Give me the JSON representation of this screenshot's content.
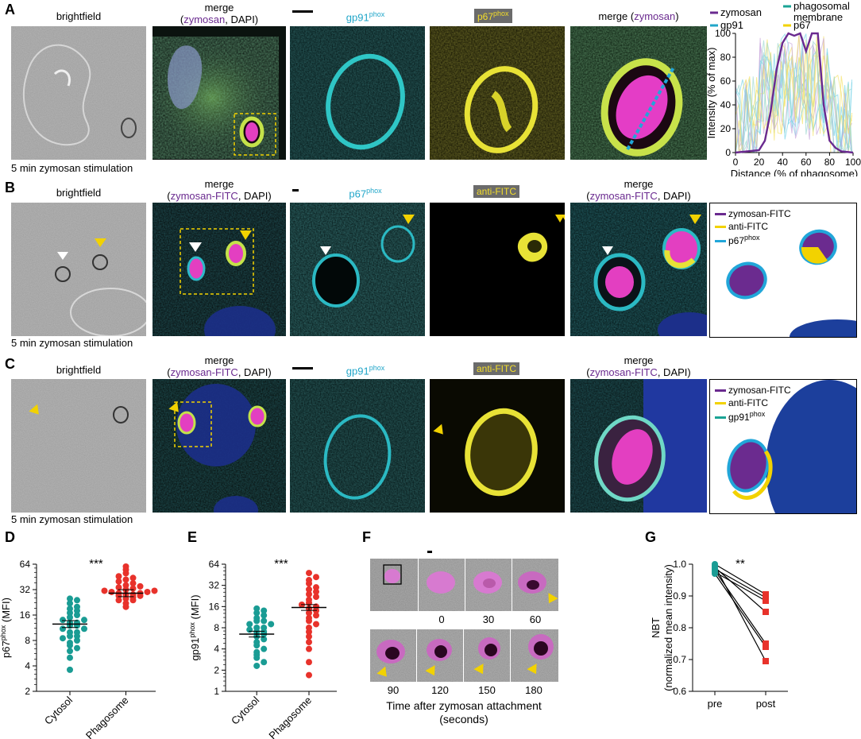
{
  "panels": {
    "A": {
      "letter": "A",
      "brightfield": "brightfield",
      "merge_title": "merge",
      "merge_sub": [
        "(",
        "zymosan",
        ", DAPI)"
      ],
      "ch1": "gp91",
      "ch1_sup": "phox",
      "ch2": "p67",
      "ch2_sup": "phox",
      "merge2_pre": "merge (",
      "merge2_mid": "zymosan",
      "merge2_post": ")",
      "foot": "5 min  zymosan stimulation"
    },
    "B": {
      "letter": "B",
      "brightfield": "brightfield",
      "merge_title": "merge",
      "merge_sub": [
        "(",
        "zymosan-FITC",
        ", DAPI)"
      ],
      "ch1": "p67",
      "ch1_sup": "phox",
      "ch2": "anti-FITC",
      "merge2_title": "merge",
      "merge2_sub": [
        "(",
        "zymosan-FITC",
        ", DAPI)"
      ],
      "foot": "5 min  zymosan stimulation",
      "legend": [
        "zymosan-FITC",
        "anti-FITC",
        "p67"
      ],
      "legend_sup": "phox"
    },
    "C": {
      "letter": "C",
      "brightfield": "brightfield",
      "merge_title": "merge",
      "merge_sub": [
        "(",
        "zymosan-FITC",
        ", DAPI)"
      ],
      "ch1": "gp91",
      "ch1_sup": "phox",
      "ch2": "anti-FITC",
      "merge2_title": "merge",
      "merge2_sub": [
        "(",
        "zymosan-FITC",
        ", DAPI)"
      ],
      "foot": "5 min  zymosan stimulation",
      "legend": [
        "zymosan-FITC",
        "anti-FITC",
        "gp91"
      ],
      "legend_sup": "phox"
    },
    "D": {
      "letter": "D",
      "signif": "***",
      "ylabel": "p67",
      "ylabel_sup": "phox",
      "ylabel_post": " (MFI)"
    },
    "E": {
      "letter": "E",
      "signif": "***",
      "ylabel": "gp91",
      "ylabel_sup": "phox",
      "ylabel_post": " (MFI)"
    },
    "F": {
      "letter": "F",
      "times_top": [
        "0",
        "30",
        "60"
      ],
      "times_bottom": [
        "90",
        "120",
        "150",
        "180"
      ],
      "xlabel1": "Time after zymosan attachment",
      "xlabel2": "(seconds)"
    },
    "G": {
      "letter": "G",
      "signif": "**",
      "ylabel1": "NBT",
      "ylabel2": "(normalized mean intensity)"
    }
  },
  "colors": {
    "zymosan": "#6a2a8f",
    "gp91": "#21a6c9",
    "p67": "#f2d200",
    "membrane": "#1aa394",
    "anti_fitc": "#f2d200",
    "cytosol": "#1a9c94",
    "phagosome": "#e8322b",
    "dapi": "#1f3aa0"
  },
  "chart_data": [
    {
      "id": "A-profile",
      "type": "line",
      "xlabel": "Distance (% of phagosome)",
      "ylabel": "Intensity (% of max)",
      "xlim": [
        0,
        100
      ],
      "ylim": [
        0,
        100
      ],
      "xticks": [
        0,
        20,
        40,
        60,
        80,
        100
      ],
      "yticks": [
        0,
        20,
        40,
        60,
        80,
        100
      ],
      "legend": [
        "zymosan",
        "phagosomal membrane",
        "gp91",
        "p67"
      ],
      "series": [
        {
          "name": "zymosan",
          "x": [
            0,
            10,
            20,
            25,
            30,
            35,
            40,
            45,
            50,
            55,
            60,
            65,
            70,
            75,
            80,
            85,
            90,
            100
          ],
          "y": [
            0,
            1,
            2,
            10,
            35,
            70,
            92,
            100,
            98,
            100,
            85,
            100,
            100,
            40,
            10,
            4,
            1,
            0
          ]
        }
      ]
    },
    {
      "id": "D",
      "type": "scatter",
      "ylabel": "p67phox (MFI)",
      "yscale": "log2",
      "ylim": [
        2,
        64
      ],
      "yticks": [
        2,
        4,
        8,
        16,
        32,
        64
      ],
      "categories": [
        "Cytosol",
        "Phagosome"
      ],
      "series": [
        {
          "name": "Cytosol",
          "values": [
            3.6,
            5,
            6,
            6.5,
            7,
            7.5,
            8,
            8.5,
            9,
            9,
            10,
            10,
            11,
            11,
            12,
            12,
            13,
            13,
            14,
            14,
            15,
            16,
            17,
            18,
            19,
            20,
            22,
            24,
            25
          ],
          "mean": 12.5
        },
        {
          "name": "Phagosome",
          "values": [
            20,
            22,
            24,
            24,
            25,
            26,
            27,
            27,
            28,
            28,
            29,
            29,
            30,
            30,
            31,
            31,
            32,
            33,
            34,
            35,
            36,
            38,
            40,
            42,
            44,
            46,
            50,
            55,
            60
          ],
          "mean": 29
        }
      ]
    },
    {
      "id": "E",
      "type": "scatter",
      "ylabel": "gp91phox (MFI)",
      "yscale": "log2",
      "ylim": [
        1,
        64
      ],
      "yticks": [
        1,
        2,
        4,
        8,
        16,
        32,
        64
      ],
      "categories": [
        "Cytosol",
        "Phagosome"
      ],
      "series": [
        {
          "name": "Cytosol",
          "values": [
            2.3,
            2.6,
            3,
            3.3,
            3.6,
            4,
            4.5,
            5,
            5.5,
            6,
            6.5,
            7,
            7,
            7.5,
            8,
            8,
            9,
            9,
            10,
            10,
            11,
            12,
            13,
            14,
            15
          ],
          "mean": 6.5
        },
        {
          "name": "Phagosome",
          "values": [
            1.7,
            2.6,
            4,
            5,
            6,
            7,
            8,
            9,
            10,
            11,
            12,
            13,
            14,
            15,
            16,
            17,
            18,
            20,
            22,
            24,
            26,
            28,
            30,
            34,
            38,
            42,
            48
          ],
          "mean": 15.5
        }
      ]
    },
    {
      "id": "G",
      "type": "line",
      "categories": [
        "pre",
        "post"
      ],
      "ylabel": "NBT (normalized mean intensity)",
      "ylim": [
        0.6,
        1.0
      ],
      "yticks": [
        0.6,
        0.7,
        0.8,
        0.9,
        1.0
      ],
      "series": [
        {
          "values": [
            1.0,
            0.905
          ]
        },
        {
          "values": [
            0.985,
            0.895
          ]
        },
        {
          "values": [
            0.975,
            0.885
          ]
        },
        {
          "values": [
            0.99,
            0.85
          ]
        },
        {
          "values": [
            0.98,
            0.75
          ]
        },
        {
          "values": [
            0.97,
            0.74
          ]
        },
        {
          "values": [
            0.995,
            0.695
          ]
        }
      ]
    }
  ]
}
